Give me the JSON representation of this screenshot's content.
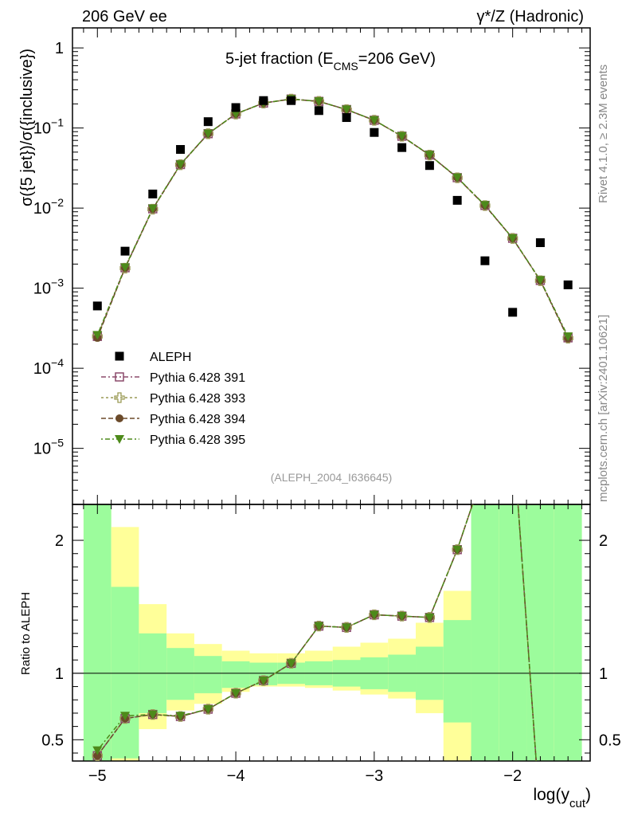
{
  "header": {
    "left": "206 GeV ee",
    "right": "γ*/Z (Hadronic)"
  },
  "side": {
    "rivet": "Rivet 4.1.0, ≥ 2.3M events",
    "mcplots": "mcplots.cern.ch [arXiv:2401.10621]"
  },
  "chart_data": {
    "type": "scatter",
    "title": "5-jet fraction (E_CMS=206 GeV)",
    "title_parts": {
      "main": "5-jet fraction (E",
      "sub": "CMS",
      "tail": "=206 GeV)"
    },
    "xlabel": "log(y_cut)",
    "xlabel_parts": {
      "main": "log(y",
      "sub": "cut",
      "tail": ")"
    },
    "ylabel": "σ({5 jet})/σ({inclusive})",
    "ratio_ylabel": "Ratio to ALEPH",
    "analysis_label": "(ALEPH_2004_I636645)",
    "xlim": [
      -5.18,
      -1.44
    ],
    "ylim_log": [
      -5.7,
      0.25
    ],
    "ratio_ylim": [
      0.34,
      2.27
    ],
    "x_ticks": [
      -5,
      -4,
      -3,
      -2
    ],
    "x_tick_labels": [
      "−5",
      "−4",
      "−3",
      "−2"
    ],
    "y_ticks": [
      {
        "exp": 0,
        "label": "1"
      },
      {
        "exp": -1,
        "label": "10",
        "sup": "−1"
      },
      {
        "exp": -2,
        "label": "10",
        "sup": "−2"
      },
      {
        "exp": -3,
        "label": "10",
        "sup": "−3"
      },
      {
        "exp": -4,
        "label": "10",
        "sup": "−4"
      },
      {
        "exp": -5,
        "label": "10",
        "sup": "−5"
      }
    ],
    "ratio_ticks": [
      {
        "v": 0.5,
        "label": "0.5"
      },
      {
        "v": 1,
        "label": "1"
      },
      {
        "v": 2,
        "label": "2"
      }
    ],
    "x": [
      -5.0,
      -4.8,
      -4.6,
      -4.4,
      -4.2,
      -4.0,
      -3.8,
      -3.6,
      -3.4,
      -3.2,
      -3.0,
      -2.8,
      -2.6,
      -2.4,
      -2.2,
      -2.0,
      -1.8,
      -1.6
    ],
    "data": {
      "name": "ALEPH",
      "values": [
        0.0006,
        0.0029,
        0.015,
        0.054,
        0.12,
        0.18,
        0.22,
        0.22,
        0.165,
        0.135,
        0.088,
        0.057,
        0.034,
        0.0125,
        0.0022,
        0.0005,
        0.0037,
        0.0011
      ]
    },
    "series": [
      {
        "name": "Pythia 6.428 391",
        "color": "#8b4a6b",
        "marker": "open-square",
        "values": [
          0.00025,
          0.0018,
          0.0098,
          0.035,
          0.085,
          0.15,
          0.205,
          0.23,
          0.215,
          0.17,
          0.125,
          0.079,
          0.046,
          0.024,
          0.0108,
          0.0042,
          0.00125,
          0.00024
        ]
      },
      {
        "name": "Pythia 6.428 393",
        "color": "#9a9a55",
        "marker": "open-cross",
        "values": [
          0.00025,
          0.00178,
          0.0097,
          0.0348,
          0.0848,
          0.1495,
          0.2045,
          0.2295,
          0.2145,
          0.1695,
          0.1248,
          0.0788,
          0.0459,
          0.0239,
          0.01075,
          0.00418,
          0.00124,
          0.000238
        ]
      },
      {
        "name": "Pythia 6.428 394",
        "color": "#6b4a2a",
        "marker": "filled-circle",
        "values": [
          0.00024,
          0.00179,
          0.00975,
          0.0349,
          0.0849,
          0.1498,
          0.2048,
          0.2298,
          0.2148,
          0.1698,
          0.1249,
          0.0789,
          0.04595,
          0.02395,
          0.01078,
          0.00419,
          0.001245,
          0.000236
        ]
      },
      {
        "name": "Pythia 6.428 395",
        "color": "#4d8a1a",
        "marker": "filled-triangle-down",
        "values": [
          0.00026,
          0.00182,
          0.0099,
          0.0352,
          0.0852,
          0.1502,
          0.2052,
          0.2302,
          0.2152,
          0.1702,
          0.1252,
          0.0792,
          0.0461,
          0.0241,
          0.0109,
          0.0042,
          0.00126,
          0.00025
        ]
      }
    ],
    "ratio_points": [
      0.38,
      0.66,
      0.69,
      0.675,
      0.73,
      0.85,
      0.945,
      1.075,
      1.355,
      1.345,
      1.44,
      1.43,
      1.42,
      1.93
    ],
    "ratio_offsets": [
      0.42,
      0.68,
      0.69,
      0.68,
      0.73,
      0.85,
      0.945,
      1.075,
      1.355,
      1.345,
      1.44,
      1.43,
      1.42,
      1.93
    ],
    "ratio_line_extra": [
      {
        "x": -2.29,
        "y": 2.27
      },
      {
        "x": -1.97,
        "y": 2.4
      },
      {
        "x": -1.83,
        "y": 0.34
      }
    ],
    "bands": [
      {
        "x0": -5.1,
        "x1": -4.9,
        "stat_lo": 0.34,
        "stat_hi": 2.27,
        "tot_lo": 0.34,
        "tot_hi": 2.27
      },
      {
        "x0": -4.9,
        "x1": -4.7,
        "stat_lo": 0.36,
        "stat_hi": 1.65,
        "tot_lo": 0.34,
        "tot_hi": 2.1
      },
      {
        "x0": -4.7,
        "x1": -4.5,
        "stat_lo": 0.7,
        "stat_hi": 1.3,
        "tot_lo": 0.58,
        "tot_hi": 1.52
      },
      {
        "x0": -4.5,
        "x1": -4.3,
        "stat_lo": 0.8,
        "stat_hi": 1.19,
        "tot_lo": 0.72,
        "tot_hi": 1.3
      },
      {
        "x0": -4.3,
        "x1": -4.1,
        "stat_lo": 0.85,
        "stat_hi": 1.13,
        "tot_lo": 0.77,
        "tot_hi": 1.22
      },
      {
        "x0": -4.1,
        "x1": -3.9,
        "stat_lo": 0.89,
        "stat_hi": 1.09,
        "tot_lo": 0.86,
        "tot_hi": 1.17
      },
      {
        "x0": -3.9,
        "x1": -3.7,
        "stat_lo": 0.91,
        "stat_hi": 1.08,
        "tot_lo": 0.9,
        "tot_hi": 1.15
      },
      {
        "x0": -3.7,
        "x1": -3.5,
        "stat_lo": 0.92,
        "stat_hi": 1.08,
        "tot_lo": 0.9,
        "tot_hi": 1.15
      },
      {
        "x0": -3.5,
        "x1": -3.3,
        "stat_lo": 0.91,
        "stat_hi": 1.09,
        "tot_lo": 0.89,
        "tot_hi": 1.17
      },
      {
        "x0": -3.3,
        "x1": -3.1,
        "stat_lo": 0.9,
        "stat_hi": 1.1,
        "tot_lo": 0.87,
        "tot_hi": 1.2
      },
      {
        "x0": -3.1,
        "x1": -2.9,
        "stat_lo": 0.88,
        "stat_hi": 1.12,
        "tot_lo": 0.84,
        "tot_hi": 1.23
      },
      {
        "x0": -2.9,
        "x1": -2.7,
        "stat_lo": 0.86,
        "stat_hi": 1.14,
        "tot_lo": 0.81,
        "tot_hi": 1.26
      },
      {
        "x0": -2.7,
        "x1": -2.5,
        "stat_lo": 0.8,
        "stat_hi": 1.2,
        "tot_lo": 0.7,
        "tot_hi": 1.38
      },
      {
        "x0": -2.5,
        "x1": -2.3,
        "stat_lo": 0.63,
        "stat_hi": 1.4,
        "tot_lo": 0.34,
        "tot_hi": 1.62
      },
      {
        "x0": -2.3,
        "x1": -2.1,
        "stat_lo": 0.34,
        "stat_hi": 2.27,
        "tot_lo": 0.34,
        "tot_hi": 2.27
      },
      {
        "x0": -2.1,
        "x1": -1.9,
        "stat_lo": 0.34,
        "stat_hi": 2.27,
        "tot_lo": 0.34,
        "tot_hi": 2.27
      },
      {
        "x0": -1.9,
        "x1": -1.7,
        "stat_lo": 0.34,
        "stat_hi": 2.27,
        "tot_lo": 0.34,
        "tot_hi": 2.27
      },
      {
        "x0": -1.7,
        "x1": -1.5,
        "stat_lo": 0.34,
        "stat_hi": 2.27,
        "tot_lo": 0.34,
        "tot_hi": 2.27
      }
    ],
    "band_colors": {
      "stat": "#9cfc9c",
      "total": "#ffff99"
    },
    "legend_position": "left-center"
  }
}
